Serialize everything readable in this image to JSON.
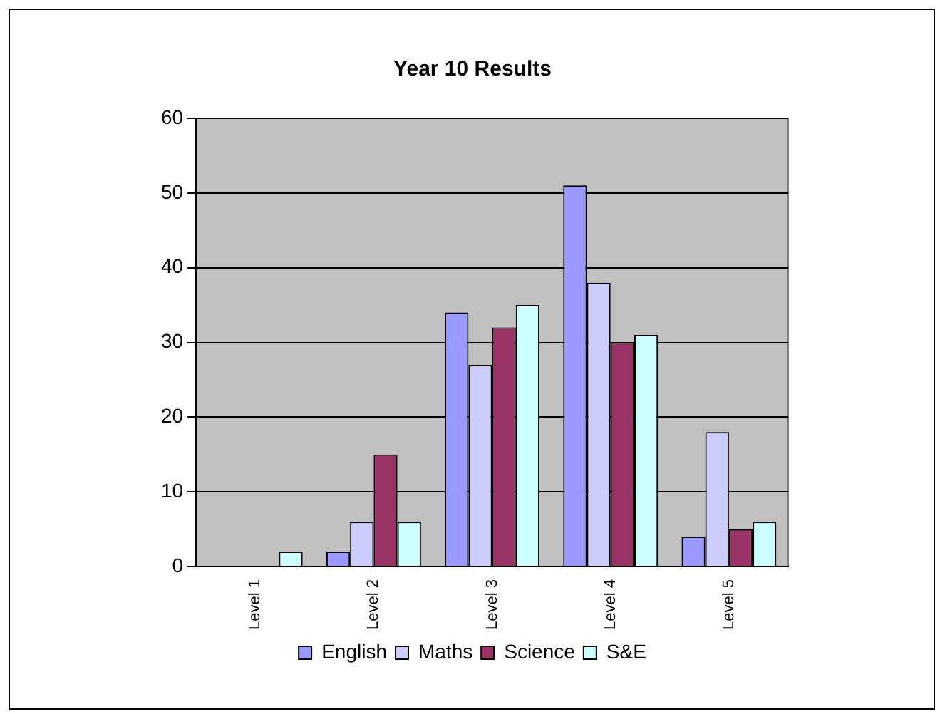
{
  "chart_data": {
    "type": "bar",
    "title": "Year 10 Results",
    "categories": [
      "Level 1",
      "Level 2",
      "Level 3",
      "Level 4",
      "Level 5"
    ],
    "series": [
      {
        "name": "English",
        "color": "#9999ff",
        "values": [
          0,
          2,
          34,
          51,
          4
        ]
      },
      {
        "name": "Maths",
        "color": "#ccccff",
        "values": [
          0,
          6,
          27,
          38,
          18
        ]
      },
      {
        "name": "Science",
        "color": "#993366",
        "values": [
          0,
          15,
          32,
          30,
          5
        ]
      },
      {
        "name": "S&E",
        "color": "#ccffff",
        "values": [
          2,
          6,
          35,
          31,
          6
        ]
      }
    ],
    "ylim": [
      0,
      60
    ],
    "yticks": [
      0,
      10,
      20,
      30,
      40,
      50,
      60
    ],
    "grid": "y",
    "legend": "bottom"
  }
}
